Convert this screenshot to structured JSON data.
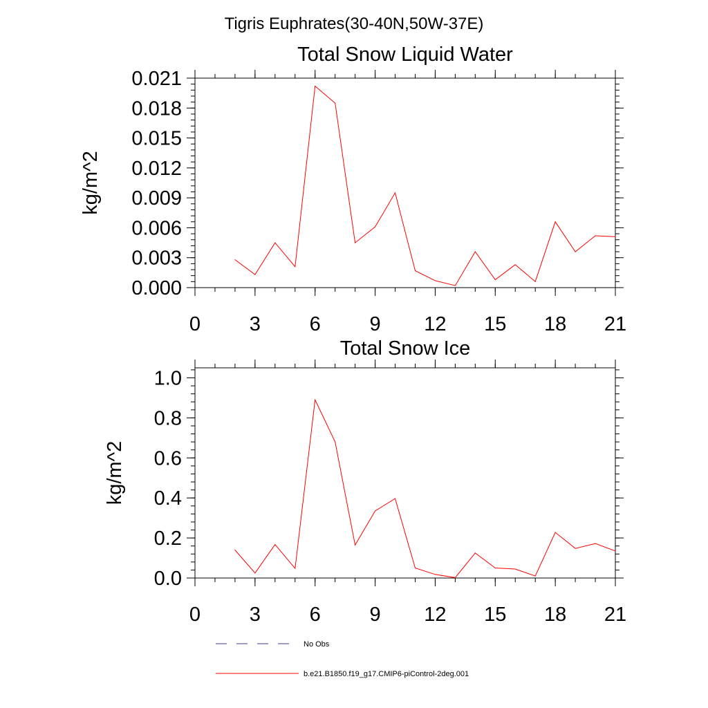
{
  "figure_title": "Tigris Euphrates(30-40N,50W-37E)",
  "legend": [
    {
      "label": "No Obs",
      "color": "#3b3b8f",
      "style": "dashed"
    },
    {
      "label": "b.e21.B1850.f19_g17.CMIP6-piControl-2deg.001",
      "color": "#ff0000",
      "style": "solid"
    }
  ],
  "chart_data": [
    {
      "type": "line",
      "title": "Total Snow Liquid Water",
      "xlabel": "",
      "ylabel": "kg/m^2",
      "xlim": [
        0,
        21
      ],
      "ylim": [
        0,
        0.021
      ],
      "xticks": [
        "0",
        "3",
        "6",
        "9",
        "12",
        "15",
        "18",
        "21"
      ],
      "yticks": [
        "0.000",
        "0.003",
        "0.006",
        "0.009",
        "0.012",
        "0.015",
        "0.018",
        "0.021"
      ],
      "grid": false,
      "series": [
        {
          "name": "b.e21.B1850.f19_g17.CMIP6-piControl-2deg.001",
          "color": "#ff0000",
          "x": [
            2,
            3,
            4,
            5,
            6,
            7,
            8,
            9,
            10,
            11,
            12,
            13,
            14,
            15,
            16,
            17,
            18,
            19,
            20,
            21
          ],
          "values": [
            0.0028,
            0.0013,
            0.0045,
            0.0021,
            0.0202,
            0.0185,
            0.0045,
            0.0061,
            0.0095,
            0.0017,
            0.0007,
            0.0002,
            0.0036,
            0.0008,
            0.0023,
            0.0006,
            0.0066,
            0.0036,
            0.0052,
            0.0051
          ]
        }
      ]
    },
    {
      "type": "line",
      "title": "Total Snow Ice",
      "xlabel": "",
      "ylabel": "kg/m^2",
      "xlim": [
        0,
        21
      ],
      "ylim": [
        0,
        1.05
      ],
      "xticks": [
        "0",
        "3",
        "6",
        "9",
        "12",
        "15",
        "18",
        "21"
      ],
      "yticks": [
        "0.0",
        "0.2",
        "0.4",
        "0.6",
        "0.8",
        "1.0"
      ],
      "grid": false,
      "series": [
        {
          "name": "b.e21.B1850.f19_g17.CMIP6-piControl-2deg.001",
          "color": "#ff0000",
          "x": [
            2,
            3,
            4,
            5,
            6,
            7,
            8,
            9,
            10,
            11,
            12,
            13,
            14,
            15,
            16,
            17,
            18,
            19,
            20,
            21
          ],
          "values": [
            0.14,
            0.025,
            0.167,
            0.048,
            0.89,
            0.68,
            0.165,
            0.335,
            0.397,
            0.05,
            0.018,
            0.002,
            0.125,
            0.05,
            0.045,
            0.01,
            0.228,
            0.148,
            0.172,
            0.135
          ]
        }
      ]
    }
  ]
}
